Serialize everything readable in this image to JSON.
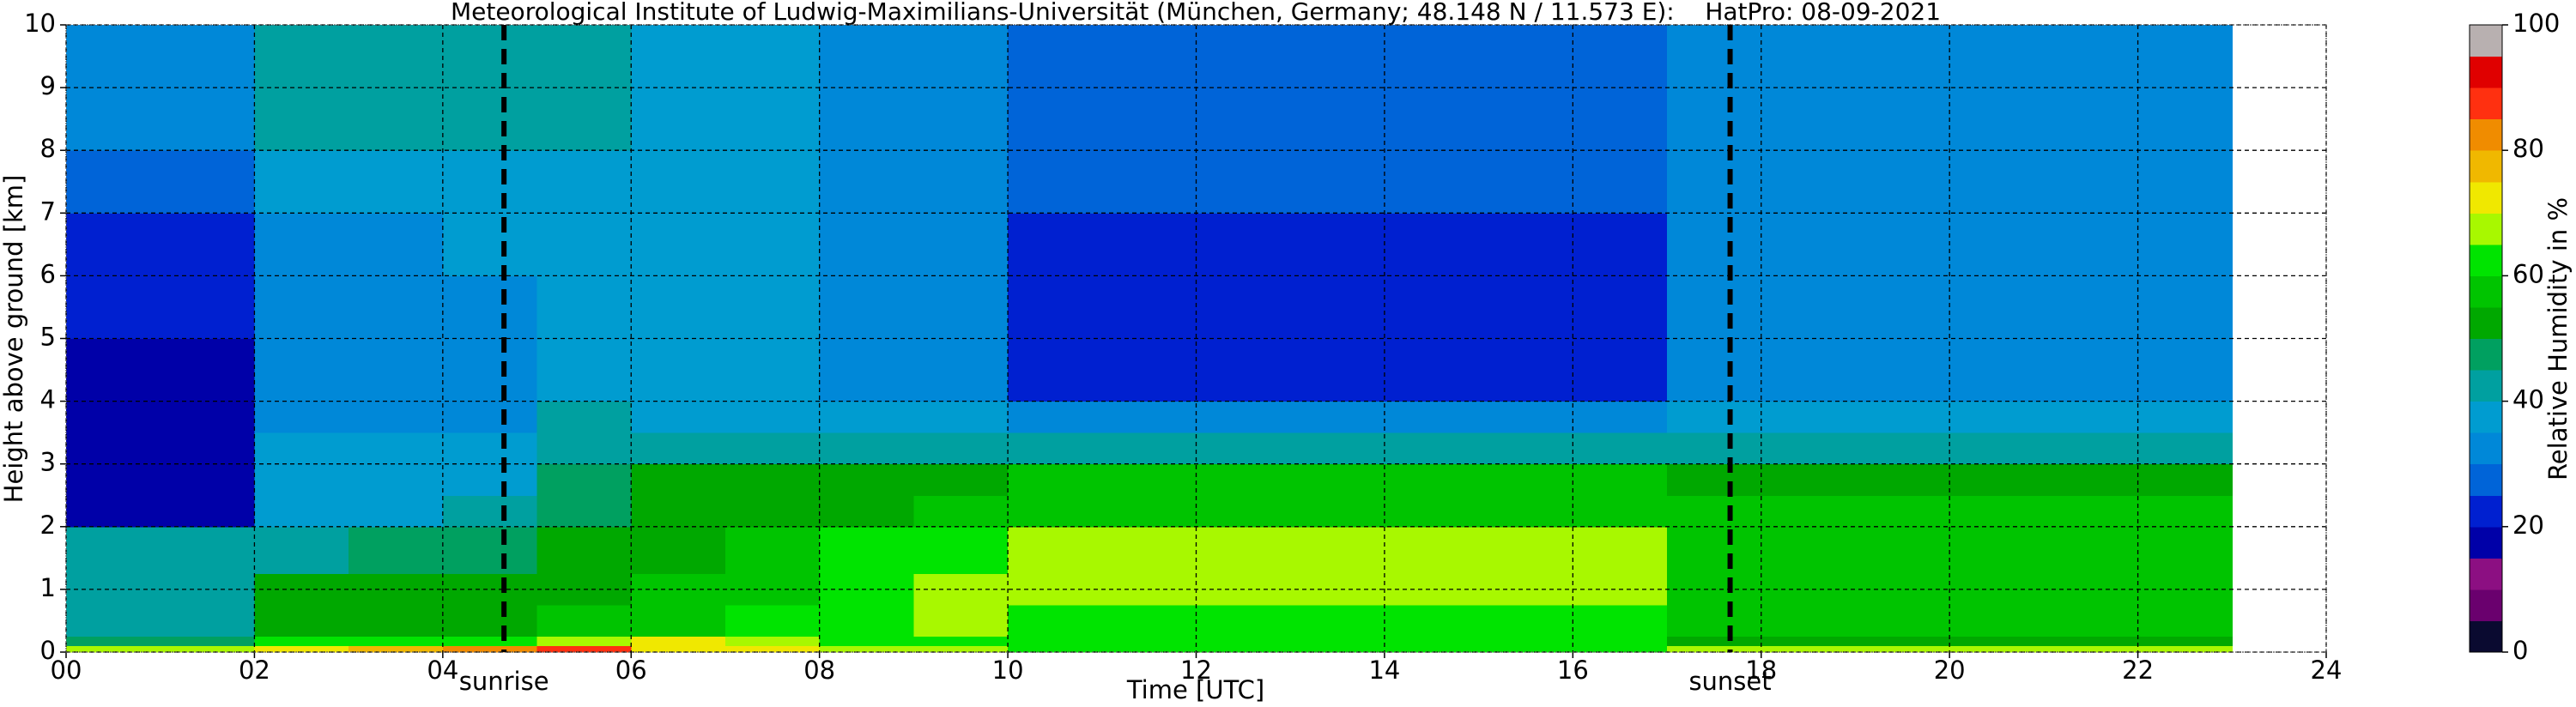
{
  "chart_data": {
    "type": "heatmap",
    "title": "Meteorological Institute of Ludwig-Maximilians-Universität (München, Germany; 48.148 N / 11.573 E):    HatPro: 08-09-2021",
    "xlabel": "Time [UTC]",
    "ylabel": "Height above ground [km]",
    "colorbar_label": "Relative Humidity in %",
    "xlim": [
      0,
      24
    ],
    "ylim": [
      0,
      10
    ],
    "xticks": [
      {
        "value": 0,
        "label": "00"
      },
      {
        "value": 2,
        "label": "02"
      },
      {
        "value": 4,
        "label": "04"
      },
      {
        "value": 6,
        "label": "06"
      },
      {
        "value": 8,
        "label": "08"
      },
      10,
      12,
      14,
      16,
      18,
      20,
      22,
      24
    ],
    "yticks": [
      0,
      1,
      2,
      3,
      4,
      5,
      6,
      7,
      8,
      9,
      10
    ],
    "grid": true,
    "colorbar_lim": [
      0,
      100
    ],
    "colorbar_ticks": [
      0,
      20,
      40,
      60,
      80,
      100
    ],
    "colors": [
      "#0a0a30",
      "#6a006e",
      "#8c0f82",
      "#0000a8",
      "#0020d0",
      "#0064d8",
      "#0088d8",
      "#009cd0",
      "#00a0a0",
      "#00a060",
      "#00a800",
      "#00c400",
      "#00e400",
      "#a8f800",
      "#f0e800",
      "#f0b800",
      "#f08c00",
      "#ff3010",
      "#e00000",
      "#b8b0b0"
    ],
    "annotations": [
      {
        "x": 4.65,
        "label": "sunrise"
      },
      {
        "x": 17.67,
        "label": "sunset"
      }
    ],
    "x_bins": [
      0,
      1,
      2,
      3,
      4,
      5,
      6,
      7,
      8,
      9,
      10,
      11,
      12,
      13,
      14,
      15,
      16,
      17,
      18,
      19,
      20,
      21,
      22,
      23
    ],
    "y_bins": [
      0,
      0.1,
      0.25,
      0.75,
      1.25,
      2,
      2.5,
      3,
      3.5,
      4,
      5,
      6,
      7,
      8,
      9,
      10
    ],
    "z": [
      [
        68,
        68,
        72,
        75,
        82,
        86,
        74,
        70,
        66,
        66,
        64,
        64,
        64,
        64,
        64,
        64,
        64,
        66,
        66,
        66,
        66,
        66,
        66
      ],
      [
        48,
        48,
        60,
        62,
        64,
        68,
        70,
        66,
        62,
        62,
        60,
        60,
        60,
        60,
        60,
        60,
        60,
        52,
        52,
        52,
        52,
        52,
        52
      ],
      [
        42,
        42,
        52,
        53,
        54,
        55,
        57,
        60,
        64,
        65,
        62,
        62,
        62,
        62,
        62,
        62,
        62,
        57,
        57,
        57,
        57,
        57,
        57
      ],
      [
        42,
        42,
        50,
        51,
        52,
        52,
        55,
        58,
        64,
        66,
        66,
        66,
        66,
        66,
        66,
        66,
        66,
        58,
        58,
        58,
        58,
        58,
        58
      ],
      [
        41,
        40,
        44,
        46,
        48,
        50,
        52,
        55,
        60,
        62,
        67,
        67,
        67,
        67,
        67,
        67,
        67,
        57,
        57,
        57,
        57,
        57,
        57
      ],
      [
        17,
        17,
        38,
        39,
        40,
        48,
        52,
        53,
        54,
        55,
        58,
        58,
        58,
        58,
        58,
        58,
        58,
        55,
        55,
        55,
        55,
        55,
        55
      ],
      [
        16,
        16,
        37,
        37,
        38,
        46,
        50,
        51,
        52,
        53,
        55,
        55,
        55,
        55,
        55,
        55,
        55,
        54,
        54,
        54,
        54,
        54,
        54
      ],
      [
        16,
        16,
        36,
        36,
        37,
        43,
        43,
        42,
        42,
        40,
        40,
        40,
        40,
        40,
        40,
        40,
        40,
        44,
        44,
        44,
        44,
        44,
        44
      ],
      [
        17,
        17,
        34,
        34,
        34,
        40,
        39,
        38,
        38,
        37,
        34,
        34,
        34,
        34,
        34,
        34,
        34,
        35,
        35,
        35,
        35,
        35,
        35
      ],
      [
        17,
        18,
        32,
        32,
        33,
        38,
        38,
        37,
        34,
        32,
        24,
        24,
        24,
        24,
        24,
        24,
        24,
        32,
        32,
        32,
        32,
        32,
        32
      ],
      [
        22,
        22,
        32,
        32,
        33,
        38,
        38,
        37,
        32,
        30,
        21,
        21,
        21,
        21,
        21,
        21,
        21,
        31,
        31,
        31,
        31,
        31,
        31
      ],
      [
        24,
        24,
        34,
        34,
        35,
        38,
        38,
        37,
        33,
        31,
        22,
        22,
        22,
        22,
        22,
        22,
        22,
        31,
        31,
        31,
        31,
        31,
        31
      ],
      [
        27,
        27,
        37,
        37,
        37,
        39,
        38,
        37,
        34,
        32,
        27,
        27,
        27,
        27,
        27,
        27,
        27,
        32,
        32,
        32,
        32,
        32,
        32
      ],
      [
        30,
        30,
        40,
        40,
        40,
        40,
        38,
        37,
        34,
        32,
        27,
        27,
        27,
        27,
        27,
        27,
        27,
        32,
        32,
        32,
        32,
        32,
        32
      ],
      [
        32,
        32,
        41,
        41,
        41,
        40,
        38,
        37,
        34,
        32,
        28,
        28,
        28,
        28,
        28,
        28,
        28,
        33,
        33,
        33,
        33,
        33,
        33
      ]
    ]
  }
}
